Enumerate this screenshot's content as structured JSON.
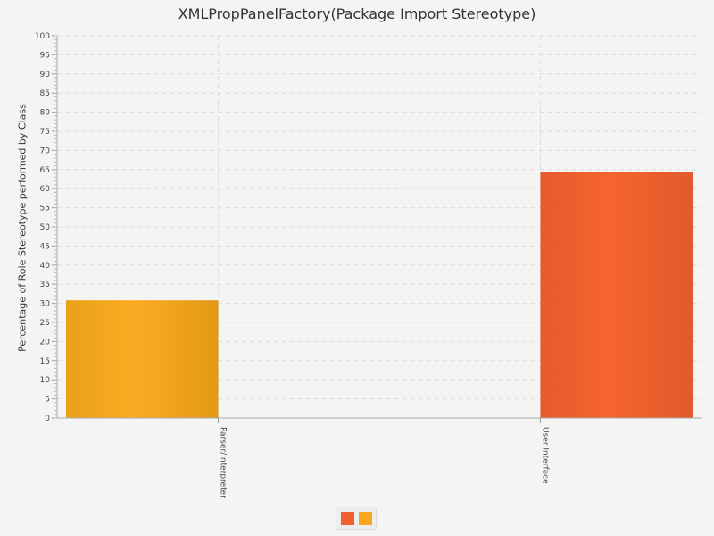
{
  "chart_data": {
    "type": "bar",
    "title": "XMLPropPanelFactory(Package Import Stereotype)",
    "xlabel": "",
    "ylabel": "Percentage of Role Stereotype performed by Class",
    "categories": [
      "Parser/Interpreter",
      "User Interface"
    ],
    "series": [
      {
        "values": [
          null,
          64.3
        ],
        "color": "#f05f2e"
      },
      {
        "values": [
          30.8,
          null
        ],
        "color": "#f9a51e"
      }
    ],
    "ylim": [
      0,
      100
    ],
    "ytick_step": 5,
    "yticks": [
      "0",
      "5",
      "10",
      "15",
      "20",
      "25",
      "30",
      "35",
      "40",
      "45",
      "50",
      "55",
      "60",
      "65",
      "70",
      "75",
      "80",
      "85",
      "90",
      "95",
      "100"
    ],
    "grid": true,
    "legend": "bottom-center"
  }
}
